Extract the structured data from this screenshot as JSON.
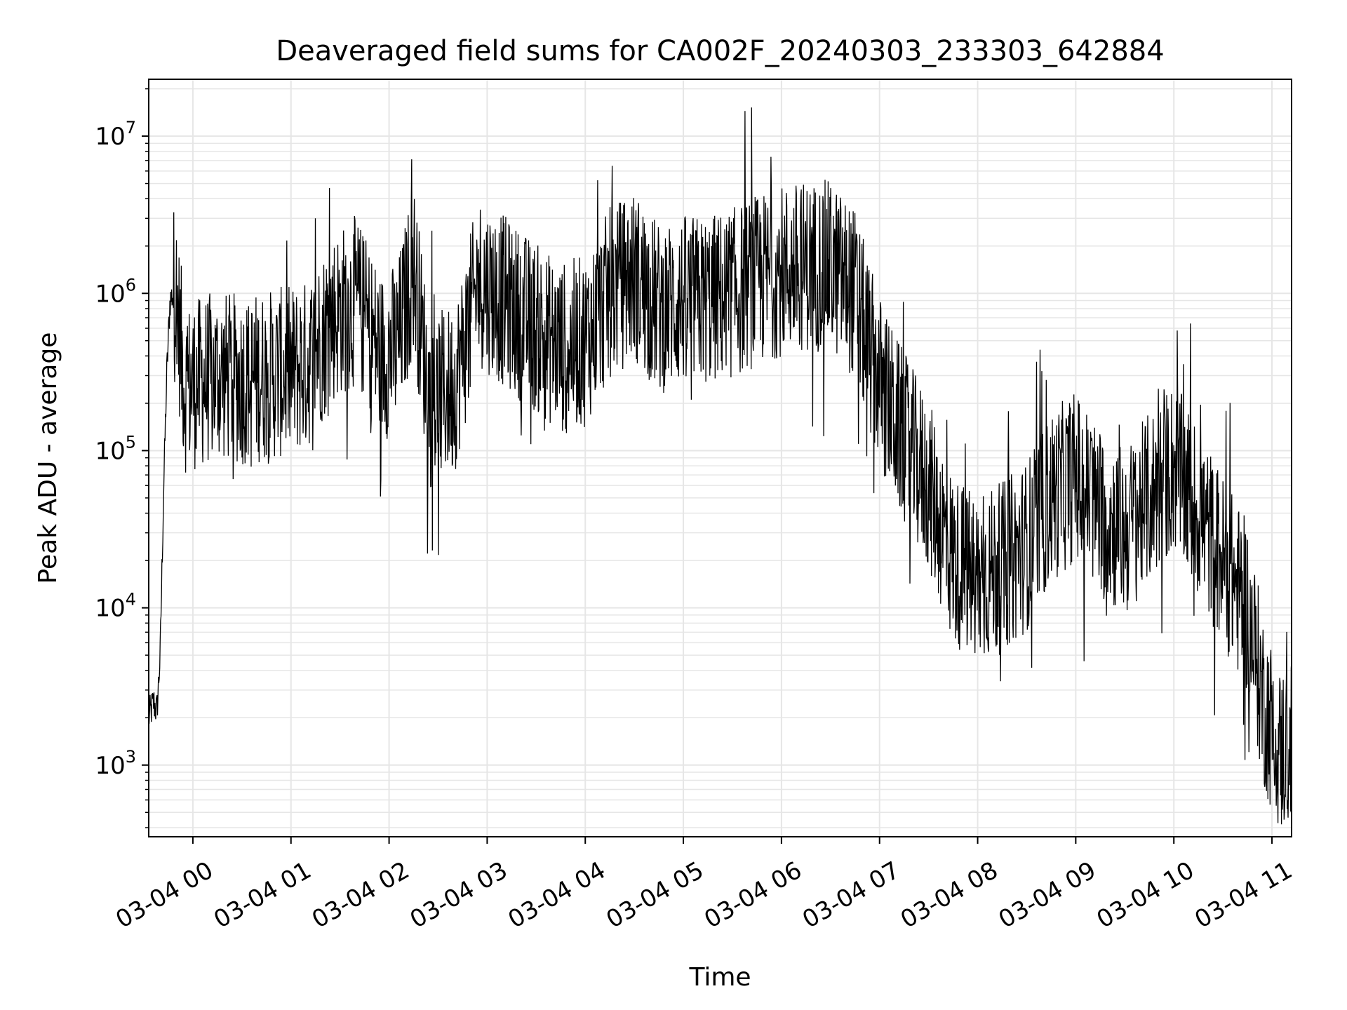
{
  "chart_data": {
    "type": "line",
    "title": "Deaveraged field sums for CA002F_20240303_233303_642884",
    "xlabel": "Time",
    "ylabel": "Peak ADU - average",
    "yscale": "log",
    "ylim": [
      350,
      23000000
    ],
    "xlim": [
      "2024-03-03 23:33",
      "2024-03-04 11:12"
    ],
    "grid": true,
    "line_color": "#000000",
    "x_tick_labels": [
      "03-04 00",
      "03-04 01",
      "03-04 02",
      "03-04 03",
      "03-04 04",
      "03-04 05",
      "03-04 06",
      "03-04 07",
      "03-04 08",
      "03-04 09",
      "03-04 10",
      "03-04 11"
    ],
    "y_tick_labels": [
      {
        "base": "10",
        "exp": "3",
        "value": 1000
      },
      {
        "base": "10",
        "exp": "4",
        "value": 10000
      },
      {
        "base": "10",
        "exp": "5",
        "value": 100000
      },
      {
        "base": "10",
        "exp": "6",
        "value": 1000000
      },
      {
        "base": "10",
        "exp": "7",
        "value": 10000000
      }
    ],
    "series": [
      {
        "points": [
          [
            "2024-03-03 23:33",
            2000
          ],
          [
            "2024-03-03 23:36",
            2500
          ],
          [
            "2024-03-03 23:38",
            2200
          ],
          [
            "2024-03-03 23:40",
            5000
          ],
          [
            "2024-03-03 23:42",
            50000
          ],
          [
            "2024-03-03 23:44",
            300000
          ],
          [
            "2024-03-03 23:46",
            900000
          ],
          [
            "2024-03-03 23:48",
            1000000
          ],
          [
            "2024-03-03 23:50",
            900000
          ],
          [
            "2024-03-03 23:55",
            250000
          ],
          [
            "2024-03-04 00:15",
            300000
          ],
          [
            "2024-03-04 00:30",
            280000
          ],
          [
            "2024-03-04 00:45",
            300000
          ],
          [
            "2024-03-04 01:00",
            320000
          ],
          [
            "2024-03-04 01:10",
            350000
          ],
          [
            "2024-03-04 01:25",
            700000
          ],
          [
            "2024-03-04 01:40",
            900000
          ],
          [
            "2024-03-04 01:55",
            400000
          ],
          [
            "2024-03-04 02:05",
            450000
          ],
          [
            "2024-03-04 02:15",
            1500000
          ],
          [
            "2024-03-04 02:25",
            200000
          ],
          [
            "2024-03-04 02:40",
            250000
          ],
          [
            "2024-03-04 02:55",
            1200000
          ],
          [
            "2024-03-04 03:10",
            900000
          ],
          [
            "2024-03-04 03:30",
            600000
          ],
          [
            "2024-03-04 03:45",
            450000
          ],
          [
            "2024-03-04 04:00",
            500000
          ],
          [
            "2024-03-04 04:15",
            1000000
          ],
          [
            "2024-03-04 04:30",
            1300000
          ],
          [
            "2024-03-04 04:45",
            800000
          ],
          [
            "2024-03-04 05:00",
            900000
          ],
          [
            "2024-03-04 05:15",
            900000
          ],
          [
            "2024-03-04 05:30",
            1000000
          ],
          [
            "2024-03-04 05:45",
            1200000
          ],
          [
            "2024-03-04 06:00",
            1400000
          ],
          [
            "2024-03-04 06:15",
            1500000
          ],
          [
            "2024-03-04 06:30",
            1500000
          ],
          [
            "2024-03-04 06:45",
            1000000
          ],
          [
            "2024-03-04 06:55",
            400000
          ],
          [
            "2024-03-04 07:05",
            200000
          ],
          [
            "2024-03-04 07:15",
            120000
          ],
          [
            "2024-03-04 07:30",
            60000
          ],
          [
            "2024-03-04 07:45",
            20000
          ],
          [
            "2024-03-04 08:00",
            15000
          ],
          [
            "2024-03-04 08:15",
            18000
          ],
          [
            "2024-03-04 08:30",
            25000
          ],
          [
            "2024-03-04 08:45",
            50000
          ],
          [
            "2024-03-04 09:00",
            70000
          ],
          [
            "2024-03-04 09:15",
            40000
          ],
          [
            "2024-03-04 09:30",
            30000
          ],
          [
            "2024-03-04 09:45",
            50000
          ],
          [
            "2024-03-04 10:00",
            80000
          ],
          [
            "2024-03-04 10:15",
            40000
          ],
          [
            "2024-03-04 10:30",
            20000
          ],
          [
            "2024-03-04 10:45",
            10000
          ],
          [
            "2024-03-04 10:55",
            2500
          ],
          [
            "2024-03-04 11:05",
            1200
          ],
          [
            "2024-03-04 11:12",
            1500
          ]
        ]
      }
    ]
  }
}
